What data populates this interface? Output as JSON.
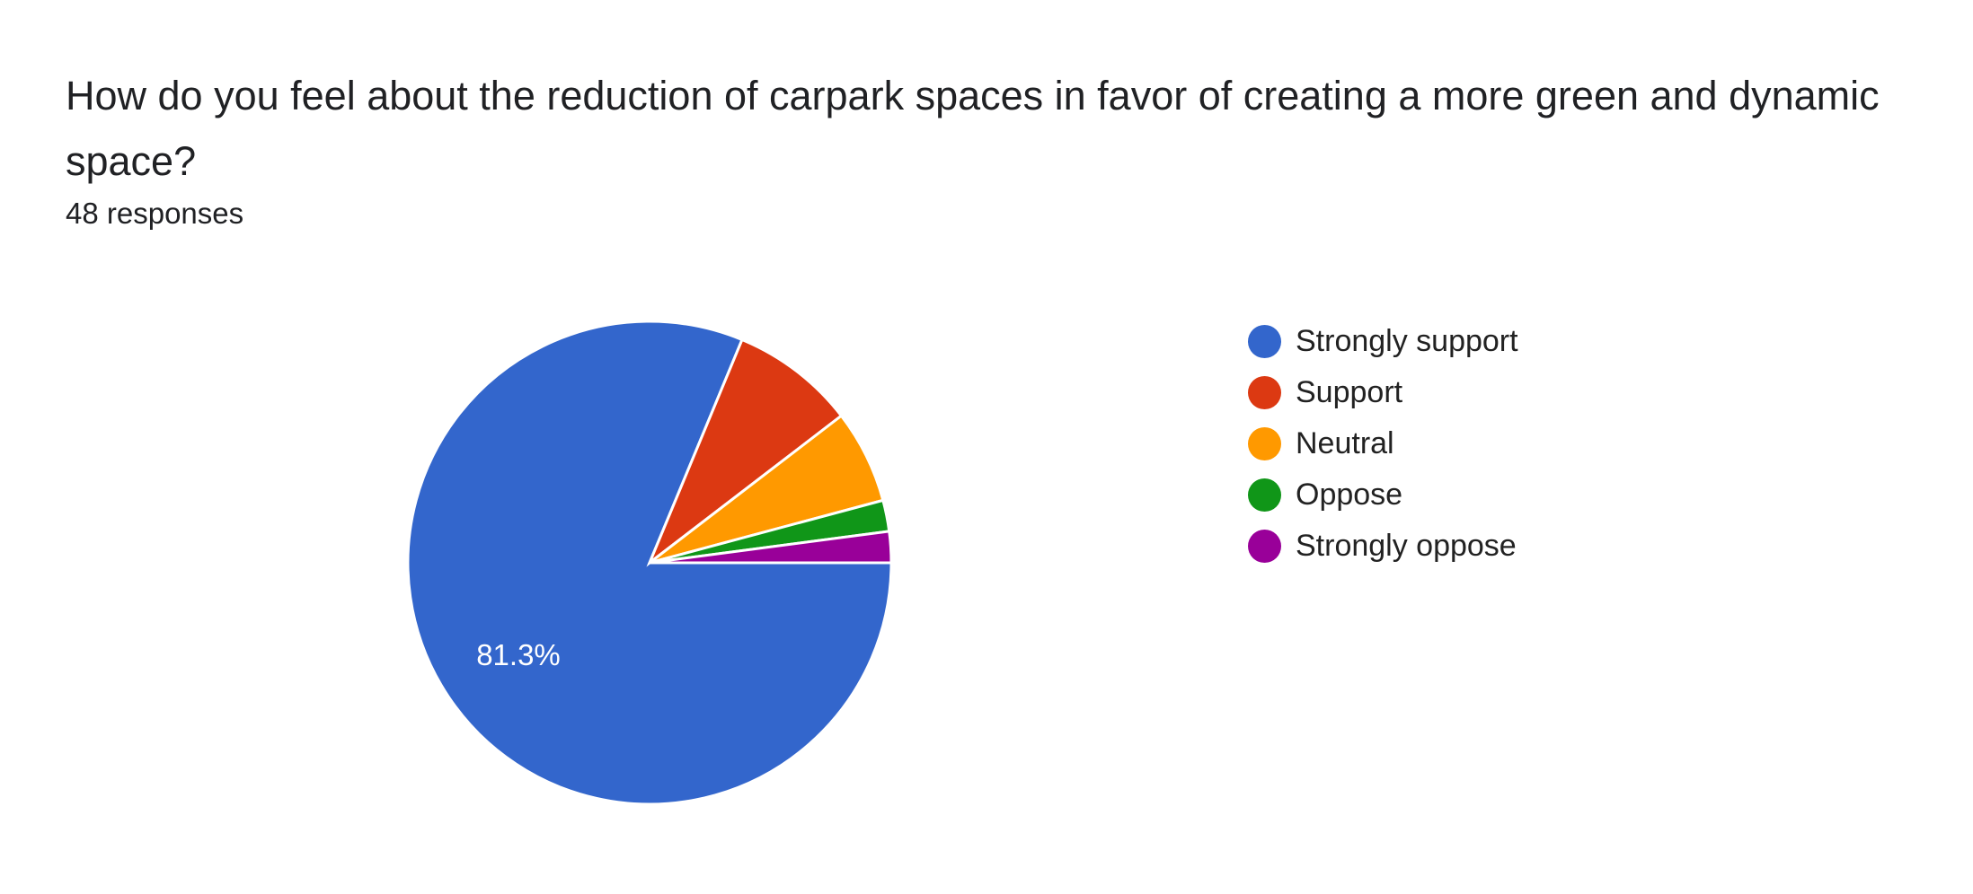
{
  "question": {
    "title": "How do you feel about the reduction of carpark spaces in favor of creating a more green and dynamic space?",
    "responses": "48 responses"
  },
  "chart_data": {
    "type": "pie",
    "title": "How do you feel about the reduction of carpark spaces in favor of creating a more green and dynamic space?",
    "subtitle": "48 responses",
    "total": 48,
    "categories": [
      "Strongly support",
      "Support",
      "Neutral",
      "Oppose",
      "Strongly oppose"
    ],
    "values": [
      39,
      4,
      3,
      1,
      1
    ],
    "percentages": [
      81.3,
      8.3,
      6.3,
      2.1,
      2.1
    ],
    "colors": [
      "#3366cc",
      "#dc3912",
      "#ff9900",
      "#109618",
      "#990099"
    ],
    "data_labels": [
      {
        "category": "Strongly support",
        "text": "81.3%"
      }
    ],
    "legend_position": "right"
  },
  "legend": {
    "items": [
      {
        "label": "Strongly support",
        "color": "#3366cc"
      },
      {
        "label": "Support",
        "color": "#dc3912"
      },
      {
        "label": "Neutral",
        "color": "#ff9900"
      },
      {
        "label": "Oppose",
        "color": "#109618"
      },
      {
        "label": "Strongly oppose",
        "color": "#990099"
      }
    ]
  }
}
